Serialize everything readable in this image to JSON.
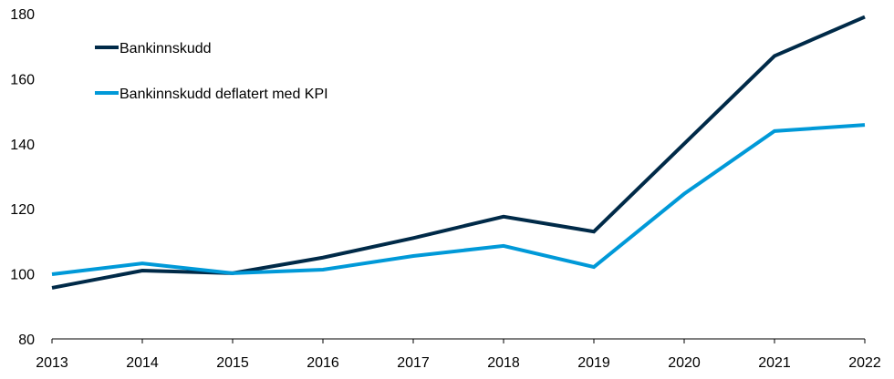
{
  "chart_data": {
    "type": "line",
    "title": "",
    "xlabel": "",
    "ylabel": "",
    "x": [
      2013,
      2014,
      2015,
      2016,
      2017,
      2018,
      2019,
      2020,
      2021,
      2022
    ],
    "ylim": [
      80,
      180
    ],
    "yticks": [
      80,
      100,
      120,
      140,
      160,
      180
    ],
    "grid": false,
    "legend_position": "top-left",
    "series": [
      {
        "name": "Bankinnskudd",
        "color": "#002A48",
        "values": [
          95.7,
          101.0,
          100.2,
          105.0,
          111.0,
          117.6,
          113.0,
          140.0,
          167.0,
          179.0
        ]
      },
      {
        "name": "Bankinnskudd deflatert med KPI",
        "color": "#0099D8",
        "values": [
          99.9,
          103.2,
          100.2,
          101.3,
          105.5,
          108.6,
          102.1,
          124.6,
          143.9,
          145.8
        ]
      }
    ]
  }
}
